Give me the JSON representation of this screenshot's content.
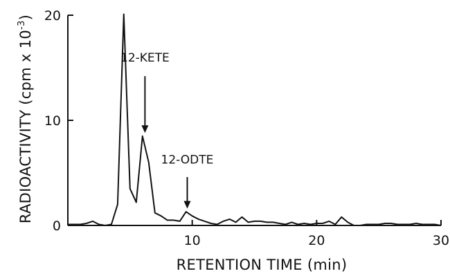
{
  "chart_data": {
    "type": "line",
    "title": "",
    "xlabel": "RETENTION TIME (min)",
    "ylabel_main": "RADIOACTIVITY (cpm x 10",
    "ylabel_exp": "-3",
    "ylabel_close": ")",
    "xlim": [
      0,
      30
    ],
    "ylim": [
      0,
      20
    ],
    "xticks": [
      10,
      20,
      30
    ],
    "yticks": [
      0,
      10,
      20
    ],
    "grid": false,
    "line_color": "#111111",
    "series": [
      {
        "x": [
          0.0,
          0.5,
          1.0,
          1.5,
          2.0,
          2.5,
          3.0,
          3.5,
          4.0,
          4.5,
          5.0,
          5.5,
          6.0,
          6.5,
          7.0,
          7.5,
          8.0,
          8.5,
          9.0,
          9.5,
          10.0,
          10.5,
          11.0,
          11.5,
          12.0,
          12.5,
          13.0,
          13.5,
          14.0,
          14.5,
          15.0,
          15.5,
          16.0,
          16.5,
          17.0,
          17.5,
          18.0,
          18.5,
          19.0,
          19.5,
          20.0,
          20.5,
          21.0,
          21.5,
          22.0,
          22.5,
          23.0,
          23.5,
          24.0,
          24.5,
          25.0,
          25.5,
          26.0,
          26.5,
          27.0,
          27.5,
          28.0,
          28.5,
          29.0,
          29.5,
          30.0
        ],
        "y": [
          0.1,
          0.1,
          0.1,
          0.2,
          0.4,
          0.1,
          0.0,
          0.1,
          2.0,
          20.1,
          3.5,
          2.2,
          8.5,
          6.0,
          1.2,
          0.9,
          0.5,
          0.5,
          0.4,
          1.3,
          0.9,
          0.6,
          0.4,
          0.2,
          0.1,
          0.4,
          0.6,
          0.3,
          0.8,
          0.3,
          0.4,
          0.4,
          0.3,
          0.3,
          0.2,
          0.1,
          0.3,
          0.1,
          0.2,
          0.1,
          0.2,
          0.2,
          0.4,
          0.1,
          0.8,
          0.3,
          0.0,
          0.0,
          0.1,
          0.1,
          0.1,
          0.2,
          0.2,
          0.1,
          0.1,
          0.1,
          0.2,
          0.1,
          0.1,
          0.1,
          0.0
        ]
      }
    ],
    "annotations": [
      {
        "text": "12-KETE",
        "x": 6.2,
        "arrow_tip_y": 8.8,
        "arrow_tail_y": 14.2,
        "label_y": 15.6
      },
      {
        "text": "12-ODTE",
        "x": 9.6,
        "arrow_tip_y": 1.6,
        "arrow_tail_y": 4.6,
        "label_y": 5.9
      }
    ]
  }
}
